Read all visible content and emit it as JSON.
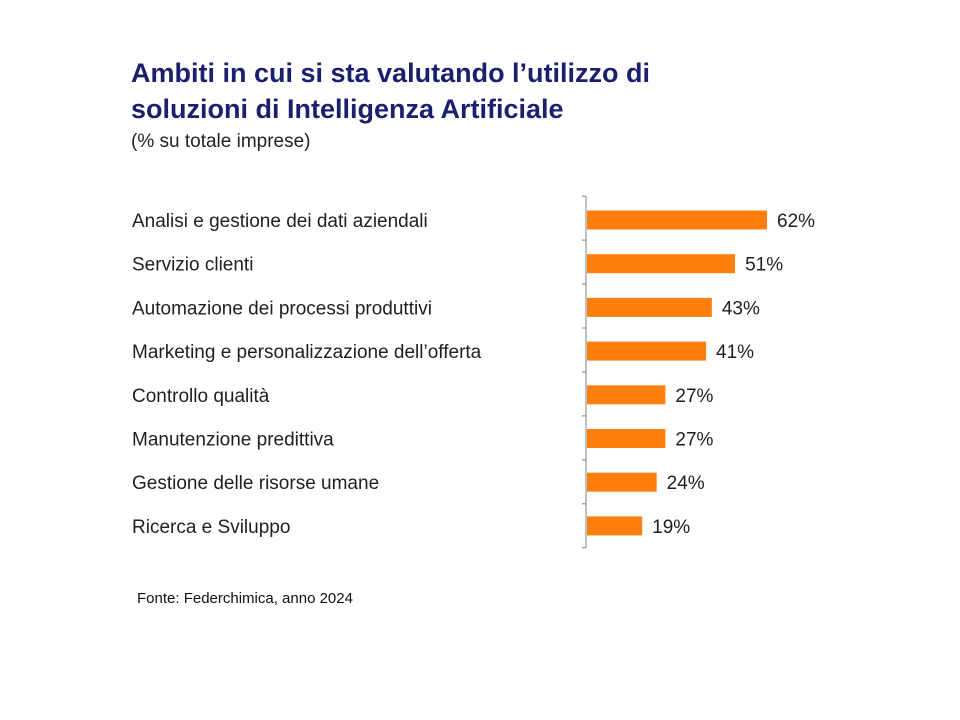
{
  "header": {
    "title_line1": "Ambiti in cui si sta valutando l’utilizzo di",
    "title_line2": "soluzioni di Intelligenza Artificiale",
    "subtitle": "(% su totale imprese)"
  },
  "footer": {
    "source": "Fonte: Federchimica, anno 2024"
  },
  "colors": {
    "title": "#1a1f6e",
    "bar": "#ff7f0e",
    "axis": "#808080"
  },
  "chart_data": {
    "type": "bar",
    "orientation": "horizontal",
    "title": "Ambiti in cui si sta valutando l’utilizzo di soluzioni di Intelligenza Artificiale",
    "subtitle": "(% su totale imprese)",
    "categories": [
      "Analisi e gestione dei dati aziendali",
      "Servizio clienti",
      "Automazione dei processi produttivi",
      "Marketing e personalizzazione dell’offerta",
      "Controllo qualità",
      "Manutenzione predittiva",
      "Gestione delle risorse umane",
      "Ricerca e Sviluppo"
    ],
    "values": [
      62,
      51,
      43,
      41,
      27,
      27,
      24,
      19
    ],
    "value_labels": [
      "62%",
      "51%",
      "43%",
      "41%",
      "27%",
      "27%",
      "24%",
      "19%"
    ],
    "unit": "%",
    "xlim": [
      0,
      100
    ],
    "grid": false,
    "legend": "none"
  }
}
